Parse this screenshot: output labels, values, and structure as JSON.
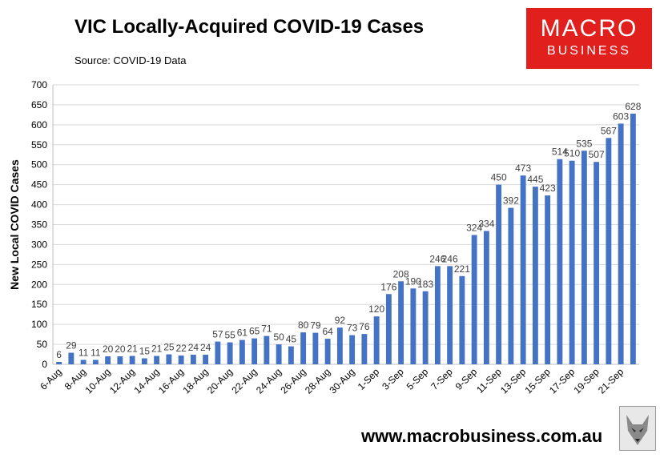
{
  "header": {
    "title": "VIC Locally-Acquired COVID-19 Cases",
    "source": "Source: COVID-19 Data"
  },
  "logo": {
    "line1": "MACRO",
    "line2": "BUSINESS"
  },
  "footer": {
    "url": "www.macrobusiness.com.au"
  },
  "colors": {
    "bar": "#4472c4",
    "logo_bg": "#e1201e",
    "grid": "#d9d9d9"
  },
  "chart_data": {
    "type": "bar",
    "title": "VIC Locally-Acquired COVID-19 Cases",
    "ylabel": "New Local COVID Cases",
    "xlabel": "",
    "ylim": [
      0,
      700
    ],
    "yticks": [
      0,
      50,
      100,
      150,
      200,
      250,
      300,
      350,
      400,
      450,
      500,
      550,
      600,
      650,
      700
    ],
    "grid": true,
    "categories": [
      "6-Aug",
      "7-Aug",
      "8-Aug",
      "9-Aug",
      "10-Aug",
      "11-Aug",
      "12-Aug",
      "13-Aug",
      "14-Aug",
      "15-Aug",
      "16-Aug",
      "17-Aug",
      "18-Aug",
      "19-Aug",
      "20-Aug",
      "21-Aug",
      "22-Aug",
      "23-Aug",
      "24-Aug",
      "25-Aug",
      "26-Aug",
      "27-Aug",
      "28-Aug",
      "29-Aug",
      "30-Aug",
      "31-Aug",
      "1-Sep",
      "2-Sep",
      "3-Sep",
      "4-Sep",
      "5-Sep",
      "6-Sep",
      "7-Sep",
      "8-Sep",
      "9-Sep",
      "10-Sep",
      "11-Sep",
      "12-Sep",
      "13-Sep",
      "14-Sep",
      "15-Sep",
      "16-Sep",
      "17-Sep",
      "18-Sep",
      "19-Sep",
      "20-Sep",
      "21-Sep",
      "22-Sep"
    ],
    "tick_labels": [
      "6-Aug",
      "8-Aug",
      "10-Aug",
      "12-Aug",
      "14-Aug",
      "16-Aug",
      "18-Aug",
      "20-Aug",
      "22-Aug",
      "24-Aug",
      "26-Aug",
      "28-Aug",
      "30-Aug",
      "1-Sep",
      "3-Sep",
      "5-Sep",
      "7-Sep",
      "9-Sep",
      "11-Sep",
      "13-Sep",
      "15-Sep",
      "17-Sep",
      "19-Sep",
      "21-Sep"
    ],
    "values": [
      6,
      29,
      11,
      11,
      20,
      20,
      21,
      15,
      21,
      25,
      22,
      24,
      24,
      57,
      55,
      61,
      65,
      71,
      50,
      45,
      80,
      79,
      64,
      92,
      73,
      76,
      120,
      176,
      208,
      190,
      183,
      246,
      246,
      221,
      324,
      334,
      450,
      392,
      473,
      445,
      423,
      514,
      510,
      535,
      507,
      567,
      603,
      628
    ],
    "data_labels": [
      "6",
      "29",
      "11",
      "11",
      "20",
      "20",
      "21",
      "15",
      "21",
      "25",
      "22",
      "24",
      "24",
      "57",
      "55",
      "61",
      "65",
      "71",
      "50",
      "45",
      "80",
      "79",
      "64",
      "92",
      "73",
      "76",
      "120",
      "176",
      "208",
      "190",
      "183",
      "246",
      "246",
      "221",
      "324",
      "334",
      "450",
      "392",
      "473",
      "445",
      "423",
      "514",
      "510",
      "535",
      "507",
      "567",
      "603",
      "628"
    ]
  }
}
